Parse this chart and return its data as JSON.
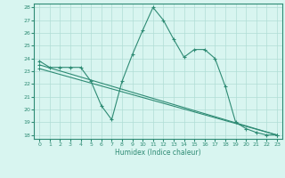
{
  "line1_x": [
    0,
    1,
    2,
    3,
    4,
    5,
    6,
    7,
    8,
    9,
    10,
    11,
    12,
    13,
    14,
    15,
    16,
    17,
    18,
    19,
    20,
    21,
    22,
    23
  ],
  "line1_y": [
    23.8,
    23.3,
    23.3,
    23.3,
    23.3,
    22.2,
    20.3,
    19.2,
    22.2,
    24.3,
    26.2,
    28.0,
    27.0,
    25.5,
    24.1,
    24.7,
    24.7,
    24.0,
    21.8,
    19.0,
    18.5,
    18.2,
    18.0,
    18.0
  ],
  "line2_x": [
    0,
    23
  ],
  "line2_y": [
    23.5,
    18.0
  ],
  "line3_x": [
    0,
    23
  ],
  "line3_y": [
    23.2,
    18.0
  ],
  "color": "#2e8b74",
  "bg_color": "#d8f5f0",
  "grid_color": "#b0ddd5",
  "xlabel": "Humidex (Indice chaleur)",
  "ylim": [
    18,
    28
  ],
  "xlim": [
    0,
    23
  ],
  "yticks": [
    18,
    19,
    20,
    21,
    22,
    23,
    24,
    25,
    26,
    27,
    28
  ],
  "xticks": [
    0,
    1,
    2,
    3,
    4,
    5,
    6,
    7,
    8,
    9,
    10,
    11,
    12,
    13,
    14,
    15,
    16,
    17,
    18,
    19,
    20,
    21,
    22,
    23
  ]
}
